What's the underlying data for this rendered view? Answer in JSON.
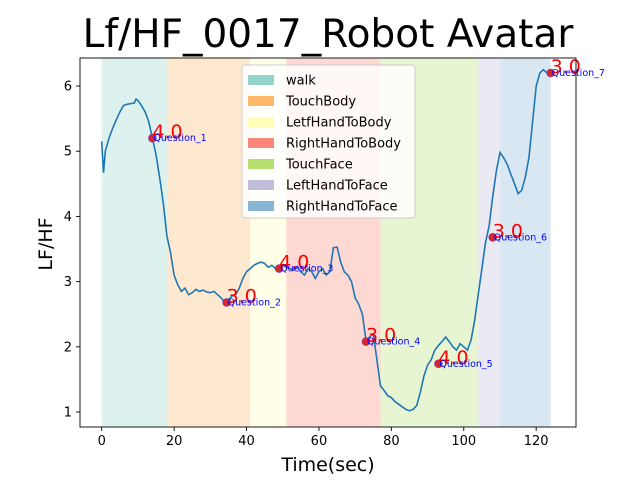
{
  "chart_data": {
    "type": "line",
    "title": "Lf/HF_0017_Robot Avatar",
    "xlabel": "Time(sec)",
    "ylabel": "LF/HF",
    "xlim": [
      -6,
      131
    ],
    "ylim": [
      0.77,
      6.43
    ],
    "xticks": [
      "0",
      "20",
      "40",
      "60",
      "80",
      "100",
      "120"
    ],
    "xtick_values": [
      0,
      20,
      40,
      60,
      80,
      100,
      120
    ],
    "yticks": [
      "1",
      "2",
      "3",
      "4",
      "5",
      "6"
    ],
    "ytick_values": [
      1,
      2,
      3,
      4,
      5,
      6
    ],
    "legend_position": "upper-center",
    "line_color": "#1f77b4",
    "phases": [
      {
        "name": "walk",
        "start": 0,
        "end": 18,
        "color": "#8dd3c7"
      },
      {
        "name": "TouchBody",
        "start": 18,
        "end": 41,
        "color": "#fdb462"
      },
      {
        "name": "LeftHandToBody",
        "start": 41,
        "end": 51,
        "color": "#ffffb3"
      },
      {
        "name": "RightHandToBody",
        "start": 51,
        "end": 77,
        "color": "#fb8072"
      },
      {
        "name": "TouchFace",
        "start": 77,
        "end": 104,
        "color": "#b3de69"
      },
      {
        "name": "LeftHandToFace",
        "start": 104,
        "end": 110,
        "color": "#bebada"
      },
      {
        "name": "RightHandToFace",
        "start": 110,
        "end": 124,
        "color": "#80b1d3"
      }
    ],
    "legend": [
      "walk",
      "TouchBody",
      "LetfHandToBody",
      "RightHandToBody",
      "TouchFace",
      "LeftHandToFace",
      "RightHandToFace"
    ],
    "series": [
      {
        "x": [
          0,
          0.5,
          1,
          2,
          3,
          4,
          5,
          6,
          7,
          8,
          9,
          9.5,
          10,
          11,
          12,
          13,
          14,
          15,
          16,
          17,
          18,
          19,
          20,
          21,
          22,
          23,
          24,
          25,
          26,
          27,
          28,
          29,
          30,
          31,
          32,
          33,
          34,
          35,
          36,
          37,
          38,
          39,
          40,
          41,
          42,
          43,
          44,
          45,
          46,
          47,
          48,
          49,
          50,
          51,
          52,
          53,
          54,
          55,
          56,
          57,
          58,
          59,
          60,
          61,
          62,
          63,
          64,
          65,
          66,
          67,
          68,
          69,
          70,
          71,
          72,
          73,
          74,
          75,
          76,
          77,
          78,
          79,
          80,
          81,
          82,
          83,
          84,
          85,
          86,
          87,
          88,
          89,
          90,
          91,
          92,
          93,
          94,
          95,
          96,
          97,
          98,
          99,
          100,
          101,
          102,
          103,
          104,
          105,
          106,
          107,
          108,
          109,
          110,
          111,
          112,
          113,
          114,
          115,
          116,
          117,
          118,
          119,
          120,
          121,
          122,
          123,
          124
        ],
        "values": [
          5.15,
          4.67,
          5.0,
          5.2,
          5.35,
          5.48,
          5.6,
          5.7,
          5.72,
          5.73,
          5.74,
          5.8,
          5.78,
          5.7,
          5.6,
          5.45,
          5.2,
          4.95,
          4.6,
          4.2,
          3.7,
          3.45,
          3.1,
          2.95,
          2.85,
          2.9,
          2.8,
          2.83,
          2.88,
          2.85,
          2.87,
          2.84,
          2.83,
          2.85,
          2.8,
          2.75,
          2.68,
          2.72,
          2.78,
          2.8,
          2.9,
          3.05,
          3.15,
          3.2,
          3.25,
          3.28,
          3.3,
          3.28,
          3.22,
          3.25,
          3.2,
          3.22,
          3.25,
          3.22,
          3.2,
          3.18,
          3.23,
          3.15,
          3.1,
          3.2,
          3.15,
          3.05,
          3.15,
          3.2,
          3.1,
          3.15,
          3.52,
          3.53,
          3.3,
          3.15,
          3.1,
          3.0,
          2.75,
          2.65,
          2.5,
          2.1,
          2.15,
          2.2,
          1.8,
          1.4,
          1.33,
          1.25,
          1.22,
          1.16,
          1.12,
          1.08,
          1.04,
          1.02,
          1.04,
          1.1,
          1.3,
          1.55,
          1.72,
          1.8,
          1.95,
          2.02,
          2.08,
          2.15,
          2.08,
          2.0,
          1.95,
          2.05,
          2.0,
          1.95,
          2.1,
          2.4,
          2.8,
          3.2,
          3.6,
          3.85,
          4.3,
          4.7,
          4.98,
          4.9,
          4.8,
          4.65,
          4.5,
          4.35,
          4.4,
          4.6,
          4.9,
          5.45,
          6.0,
          6.2,
          6.25,
          6.2,
          6.2
        ]
      }
    ],
    "annotations": [
      {
        "x": 14,
        "y": 5.2,
        "score": "4.0",
        "label": "Question_1"
      },
      {
        "x": 34.5,
        "y": 2.68,
        "score": "3.0",
        "label": "Question_2"
      },
      {
        "x": 49,
        "y": 3.2,
        "score": "4.0",
        "label": "Question_3"
      },
      {
        "x": 73,
        "y": 2.08,
        "score": "3.0",
        "label": "Question_4"
      },
      {
        "x": 93,
        "y": 1.74,
        "score": "4.0",
        "label": "Question_5"
      },
      {
        "x": 108,
        "y": 3.68,
        "score": "3.0",
        "label": "Question_6"
      },
      {
        "x": 124,
        "y": 6.2,
        "score": "3.0",
        "label": "Question_7"
      }
    ]
  }
}
